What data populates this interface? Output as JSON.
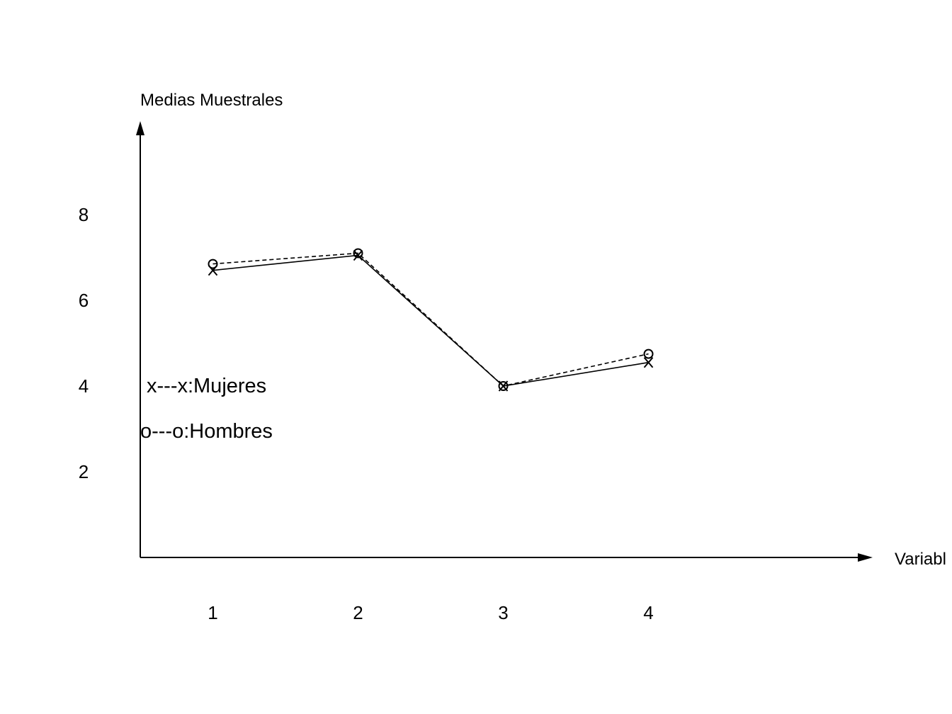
{
  "chart_data": {
    "type": "line",
    "ylabel": "Medias Muestrales",
    "xlabel": "Variabl",
    "x": [
      1,
      2,
      3,
      4
    ],
    "xticks": [
      "1",
      "2",
      "3",
      "4"
    ],
    "yticks": [
      "2",
      "4",
      "6",
      "8"
    ],
    "xlim": [
      0.5,
      5.6
    ],
    "ylim": [
      0,
      10.2
    ],
    "series": [
      {
        "name": "Mujeres",
        "marker": "x",
        "line": "solid",
        "values": [
          6.7,
          7.05,
          4.0,
          4.55
        ]
      },
      {
        "name": "Hombres",
        "marker": "o",
        "line": "dashed",
        "values": [
          6.85,
          7.1,
          4.0,
          4.75
        ]
      }
    ],
    "legend": [
      {
        "key": "x---x:Mujeres"
      },
      {
        "key": "o---o:Hombres"
      }
    ],
    "grid": false
  }
}
